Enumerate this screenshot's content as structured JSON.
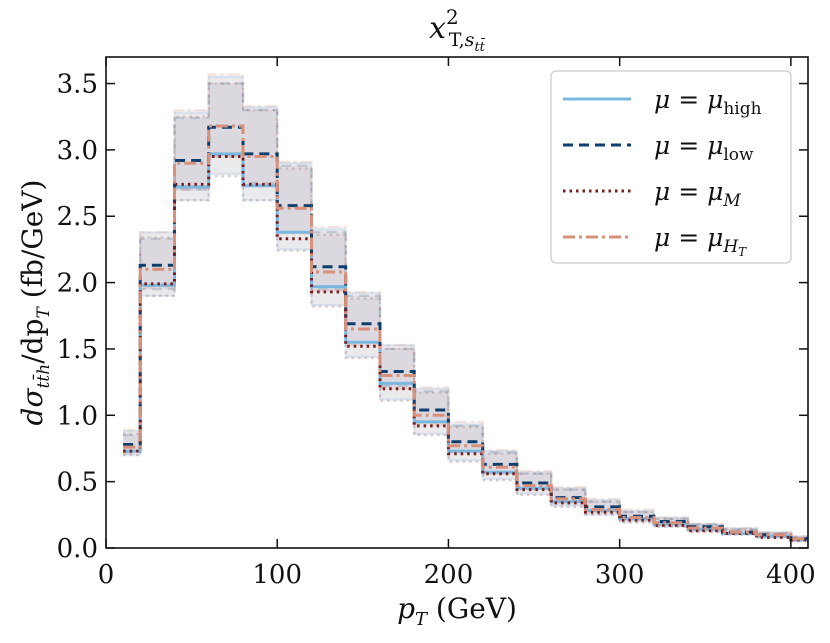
{
  "chart_data": {
    "type": "line",
    "title": "x²_{T,s_tt̄}",
    "title_parts": {
      "base": "x",
      "sup": "2",
      "sub": "T,",
      "sub2": "s",
      "sub3": "tt̄"
    },
    "xlabel": "p_T (GeV)",
    "xlabel_parts": {
      "var": "p",
      "sub": "T",
      "rest": " (GeV)"
    },
    "ylabel": "dσ_{tt̄h}/dp_T (fb/GeV)",
    "ylabel_parts": {
      "pre": "dσ",
      "sub": "tt̄h",
      "mid": "/dp",
      "sub2": "T",
      "rest": " (fb/GeV)"
    },
    "xlim": [
      0,
      410
    ],
    "ylim": [
      0,
      3.7
    ],
    "xticks": [
      0,
      100,
      200,
      300,
      400
    ],
    "xtick_labels": [
      "0",
      "100",
      "200",
      "300",
      "400"
    ],
    "yticks": [
      0.0,
      0.5,
      1.0,
      1.5,
      2.0,
      2.5,
      3.0,
      3.5
    ],
    "ytick_labels": [
      "0.0",
      "0.5",
      "1.0",
      "1.5",
      "2.0",
      "2.5",
      "3.0",
      "3.5"
    ],
    "bin_edges": [
      10,
      20,
      40,
      60,
      80,
      100,
      120,
      140,
      160,
      180,
      200,
      220,
      240,
      260,
      280,
      300,
      320,
      340,
      360,
      380,
      400,
      410
    ],
    "series": [
      {
        "name": "μ = μ_high",
        "legend_parts": {
          "lhs": "μ = μ",
          "sub": "high"
        },
        "color": "#7ab8e0",
        "dash": "",
        "values": [
          0.73,
          1.98,
          2.72,
          2.97,
          2.73,
          2.38,
          1.97,
          1.55,
          1.24,
          0.95,
          0.73,
          0.57,
          0.45,
          0.35,
          0.28,
          0.22,
          0.18,
          0.14,
          0.11,
          0.09,
          0.06
        ],
        "band_low": [
          0.7,
          1.9,
          2.62,
          2.82,
          2.62,
          2.25,
          1.83,
          1.44,
          1.12,
          0.86,
          0.66,
          0.52,
          0.41,
          0.32,
          0.25,
          0.2,
          0.16,
          0.13,
          0.1,
          0.08,
          0.06
        ],
        "band_high": [
          0.88,
          2.38,
          3.28,
          3.55,
          3.32,
          2.9,
          2.4,
          1.92,
          1.53,
          1.2,
          0.93,
          0.73,
          0.57,
          0.45,
          0.36,
          0.28,
          0.23,
          0.18,
          0.15,
          0.12,
          0.09
        ]
      },
      {
        "name": "μ = μ_low",
        "legend_parts": {
          "lhs": "μ = μ",
          "sub": "low"
        },
        "color": "#0d3f6e",
        "dash": "10,6",
        "values": [
          0.78,
          2.13,
          2.92,
          3.17,
          2.97,
          2.58,
          2.12,
          1.69,
          1.33,
          1.04,
          0.8,
          0.63,
          0.49,
          0.38,
          0.31,
          0.24,
          0.2,
          0.16,
          0.12,
          0.1,
          0.07
        ],
        "band_low": [
          0.72,
          1.95,
          2.7,
          2.95,
          2.75,
          2.38,
          1.95,
          1.55,
          1.22,
          0.95,
          0.73,
          0.57,
          0.45,
          0.35,
          0.28,
          0.22,
          0.18,
          0.14,
          0.11,
          0.09,
          0.06
        ],
        "band_high": [
          0.85,
          2.33,
          3.24,
          3.5,
          3.3,
          2.88,
          2.38,
          1.9,
          1.5,
          1.18,
          0.92,
          0.72,
          0.56,
          0.44,
          0.35,
          0.27,
          0.22,
          0.18,
          0.14,
          0.11,
          0.08
        ]
      },
      {
        "name": "μ = μ_M",
        "legend_parts": {
          "lhs": "μ = μ",
          "sub": "M"
        },
        "color": "#7a1c1c",
        "dash": "2.5,4",
        "values": [
          0.73,
          1.99,
          2.74,
          2.95,
          2.74,
          2.33,
          1.93,
          1.52,
          1.2,
          0.92,
          0.71,
          0.56,
          0.44,
          0.34,
          0.27,
          0.21,
          0.17,
          0.13,
          0.11,
          0.08,
          0.06
        ],
        "band_low": [
          0.7,
          1.9,
          2.62,
          2.8,
          2.62,
          2.24,
          1.82,
          1.43,
          1.11,
          0.85,
          0.65,
          0.51,
          0.4,
          0.31,
          0.25,
          0.19,
          0.16,
          0.12,
          0.1,
          0.08,
          0.05
        ],
        "band_high": [
          0.86,
          2.34,
          3.25,
          3.5,
          3.3,
          2.86,
          2.36,
          1.88,
          1.5,
          1.17,
          0.91,
          0.71,
          0.56,
          0.44,
          0.35,
          0.27,
          0.22,
          0.17,
          0.14,
          0.11,
          0.08
        ]
      },
      {
        "name": "μ = μ_{H_T}",
        "legend_parts": {
          "lhs": "μ = μ",
          "sub": "H",
          "subsub": "T"
        },
        "color": "#d9907a",
        "dash": "12,4,3,4",
        "values": [
          0.76,
          2.1,
          2.9,
          3.18,
          2.95,
          2.56,
          2.08,
          1.65,
          1.3,
          1.0,
          0.77,
          0.61,
          0.47,
          0.37,
          0.29,
          0.23,
          0.19,
          0.15,
          0.12,
          0.1,
          0.07
        ],
        "band_low": [
          0.72,
          1.96,
          2.7,
          2.96,
          2.74,
          2.37,
          1.94,
          1.53,
          1.2,
          0.93,
          0.72,
          0.56,
          0.44,
          0.34,
          0.27,
          0.21,
          0.17,
          0.14,
          0.11,
          0.09,
          0.06
        ],
        "band_high": [
          0.89,
          2.38,
          3.3,
          3.57,
          3.33,
          2.91,
          2.42,
          1.93,
          1.53,
          1.21,
          0.95,
          0.74,
          0.58,
          0.46,
          0.37,
          0.29,
          0.23,
          0.18,
          0.15,
          0.12,
          0.09
        ]
      }
    ],
    "grid": false,
    "legend_position": "top-right",
    "band_color": "#b9b3c2"
  }
}
